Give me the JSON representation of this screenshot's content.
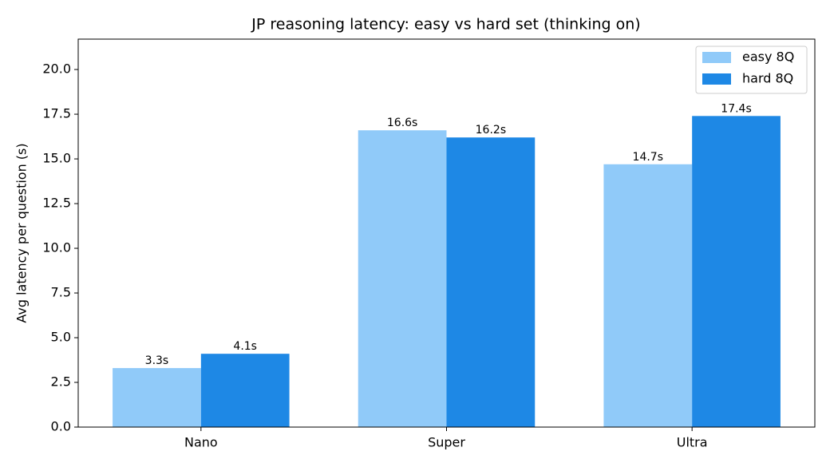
{
  "chart_data": {
    "type": "bar",
    "title": "JP reasoning latency: easy vs hard set (thinking on)",
    "y_label": "Avg latency per question (s)",
    "categories": [
      "Nano",
      "Super",
      "Ultra"
    ],
    "series": [
      {
        "name": "easy 8Q",
        "color": "#90caf9",
        "values": [
          3.3,
          16.6,
          14.7
        ],
        "value_labels": [
          "3.3s",
          "16.6s",
          "14.7s"
        ]
      },
      {
        "name": "hard 8Q",
        "color": "#1e88e5",
        "values": [
          4.1,
          16.2,
          17.4
        ],
        "value_labels": [
          "4.1s",
          "16.2s",
          "17.4s"
        ]
      }
    ],
    "ylim": [
      0,
      21.7
    ],
    "yticks": [
      {
        "value": 0,
        "label": "0.0"
      },
      2.5,
      {
        "value": 5,
        "label": "5.0"
      },
      7.5,
      {
        "value": 10,
        "label": "10.0"
      },
      12.5,
      {
        "value": 15,
        "label": "15.0"
      },
      17.5,
      {
        "value": 20,
        "label": "20.0"
      }
    ],
    "grid": false,
    "legend": "upper right"
  }
}
